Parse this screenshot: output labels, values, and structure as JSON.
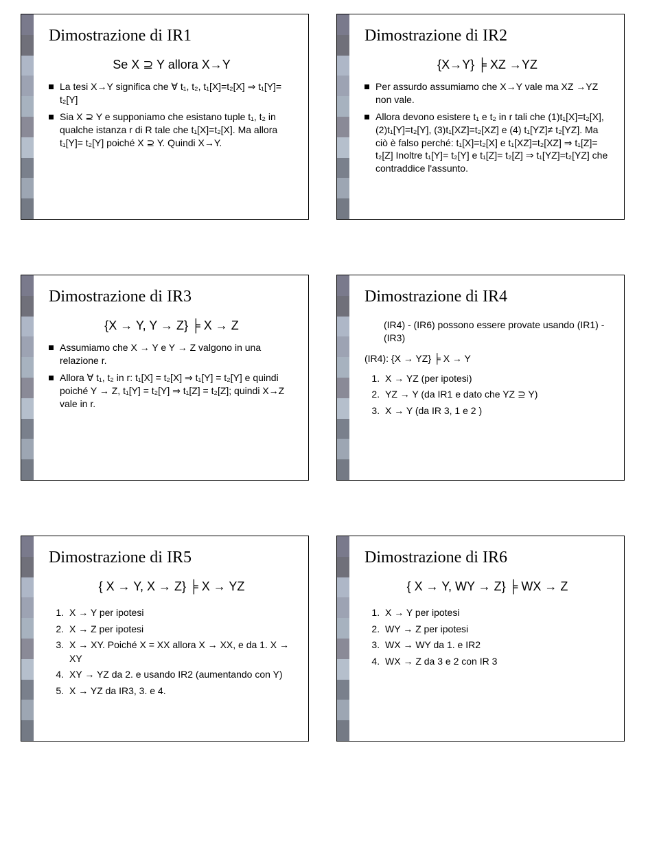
{
  "slides": {
    "ir1": {
      "title": "Dimostrazione di IR1",
      "subtitle": "Se X ⊇ Y allora X→Y",
      "bullets": [
        "La tesi X→Y significa che ∀ t₁, t₂, t₁[X]=t₂[X] ⇒ t₁[Y]= t₂[Y]",
        "Sia X ⊇ Y e supponiamo che esistano tuple t₁, t₂ in qualche istanza r di R tale che t₁[X]=t₂[X]. Ma allora t₁[Y]= t₂[Y] poiché X ⊇ Y. Quindi X→Y."
      ]
    },
    "ir2": {
      "title": "Dimostrazione di IR2",
      "subtitle": "{X→Y} ╞ XZ →YZ",
      "bullets": [
        "Per assurdo assumiamo che X→Y vale ma XZ →YZ non vale.",
        "Allora devono esistere t₁ e t₂ in r tali che (1)t₁[X]=t₂[X], (2)t₁[Y]=t₂[Y], (3)t₁[XZ]=t₂[XZ] e (4) t₁[YZ]≠ t₂[YZ]. Ma ciò è falso perché: t₁[X]=t₂[X] e t₁[XZ]=t₂[XZ] ⇒ t₁[Z]= t₂[Z] Inoltre t₁[Y]= t₂[Y] e t₁[Z]= t₂[Z] ⇒ t₁[YZ]=t₂[YZ] che contraddice l'assunto."
      ]
    },
    "ir3": {
      "title": "Dimostrazione di IR3",
      "subtitle": "{X → Y, Y → Z} ╞ X → Z",
      "bullets": [
        "Assumiamo che X → Y e Y → Z valgono in una relazione r.",
        "Allora ∀ t₁, t₂ in r: t₁[X] = t₂[X] ⇒ t₁[Y] = t₂[Y] e quindi poiché Y → Z, t₁[Y] = t₂[Y] ⇒ t₁[Z] = t₂[Z]; quindi X→Z vale in r."
      ]
    },
    "ir4": {
      "title": "Dimostrazione di IR4",
      "intro": "(IR4) - (IR6) possono essere provate usando (IR1) - (IR3)",
      "label": "(IR4):        {X → YZ} ╞ X → Y",
      "steps": [
        "X → YZ (per ipotesi)",
        "YZ → Y (da IR1 e dato che YZ ⊇ Y)",
        "X → Y  (da IR 3, 1 e 2 )"
      ]
    },
    "ir5": {
      "title": "Dimostrazione di IR5",
      "subtitle": "{ X → Y, X → Z} ╞ X → YZ",
      "steps": [
        "X → Y per ipotesi",
        "X → Z per ipotesi",
        "X → XY. Poiché X = XX allora X → XX, e da 1. X → XY",
        "XY → YZ da 2. e usando IR2 (aumentando con Y)",
        "X → YZ da IR3, 3. e 4."
      ]
    },
    "ir6": {
      "title": "Dimostrazione di IR6",
      "subtitle": "{ X → Y, WY → Z} ╞ WX → Z",
      "steps": [
        "X → Y per ipotesi",
        "WY → Z per ipotesi",
        "WX → WY da 1. e IR2",
        "WX → Z da 3 e 2 con IR 3"
      ]
    }
  }
}
